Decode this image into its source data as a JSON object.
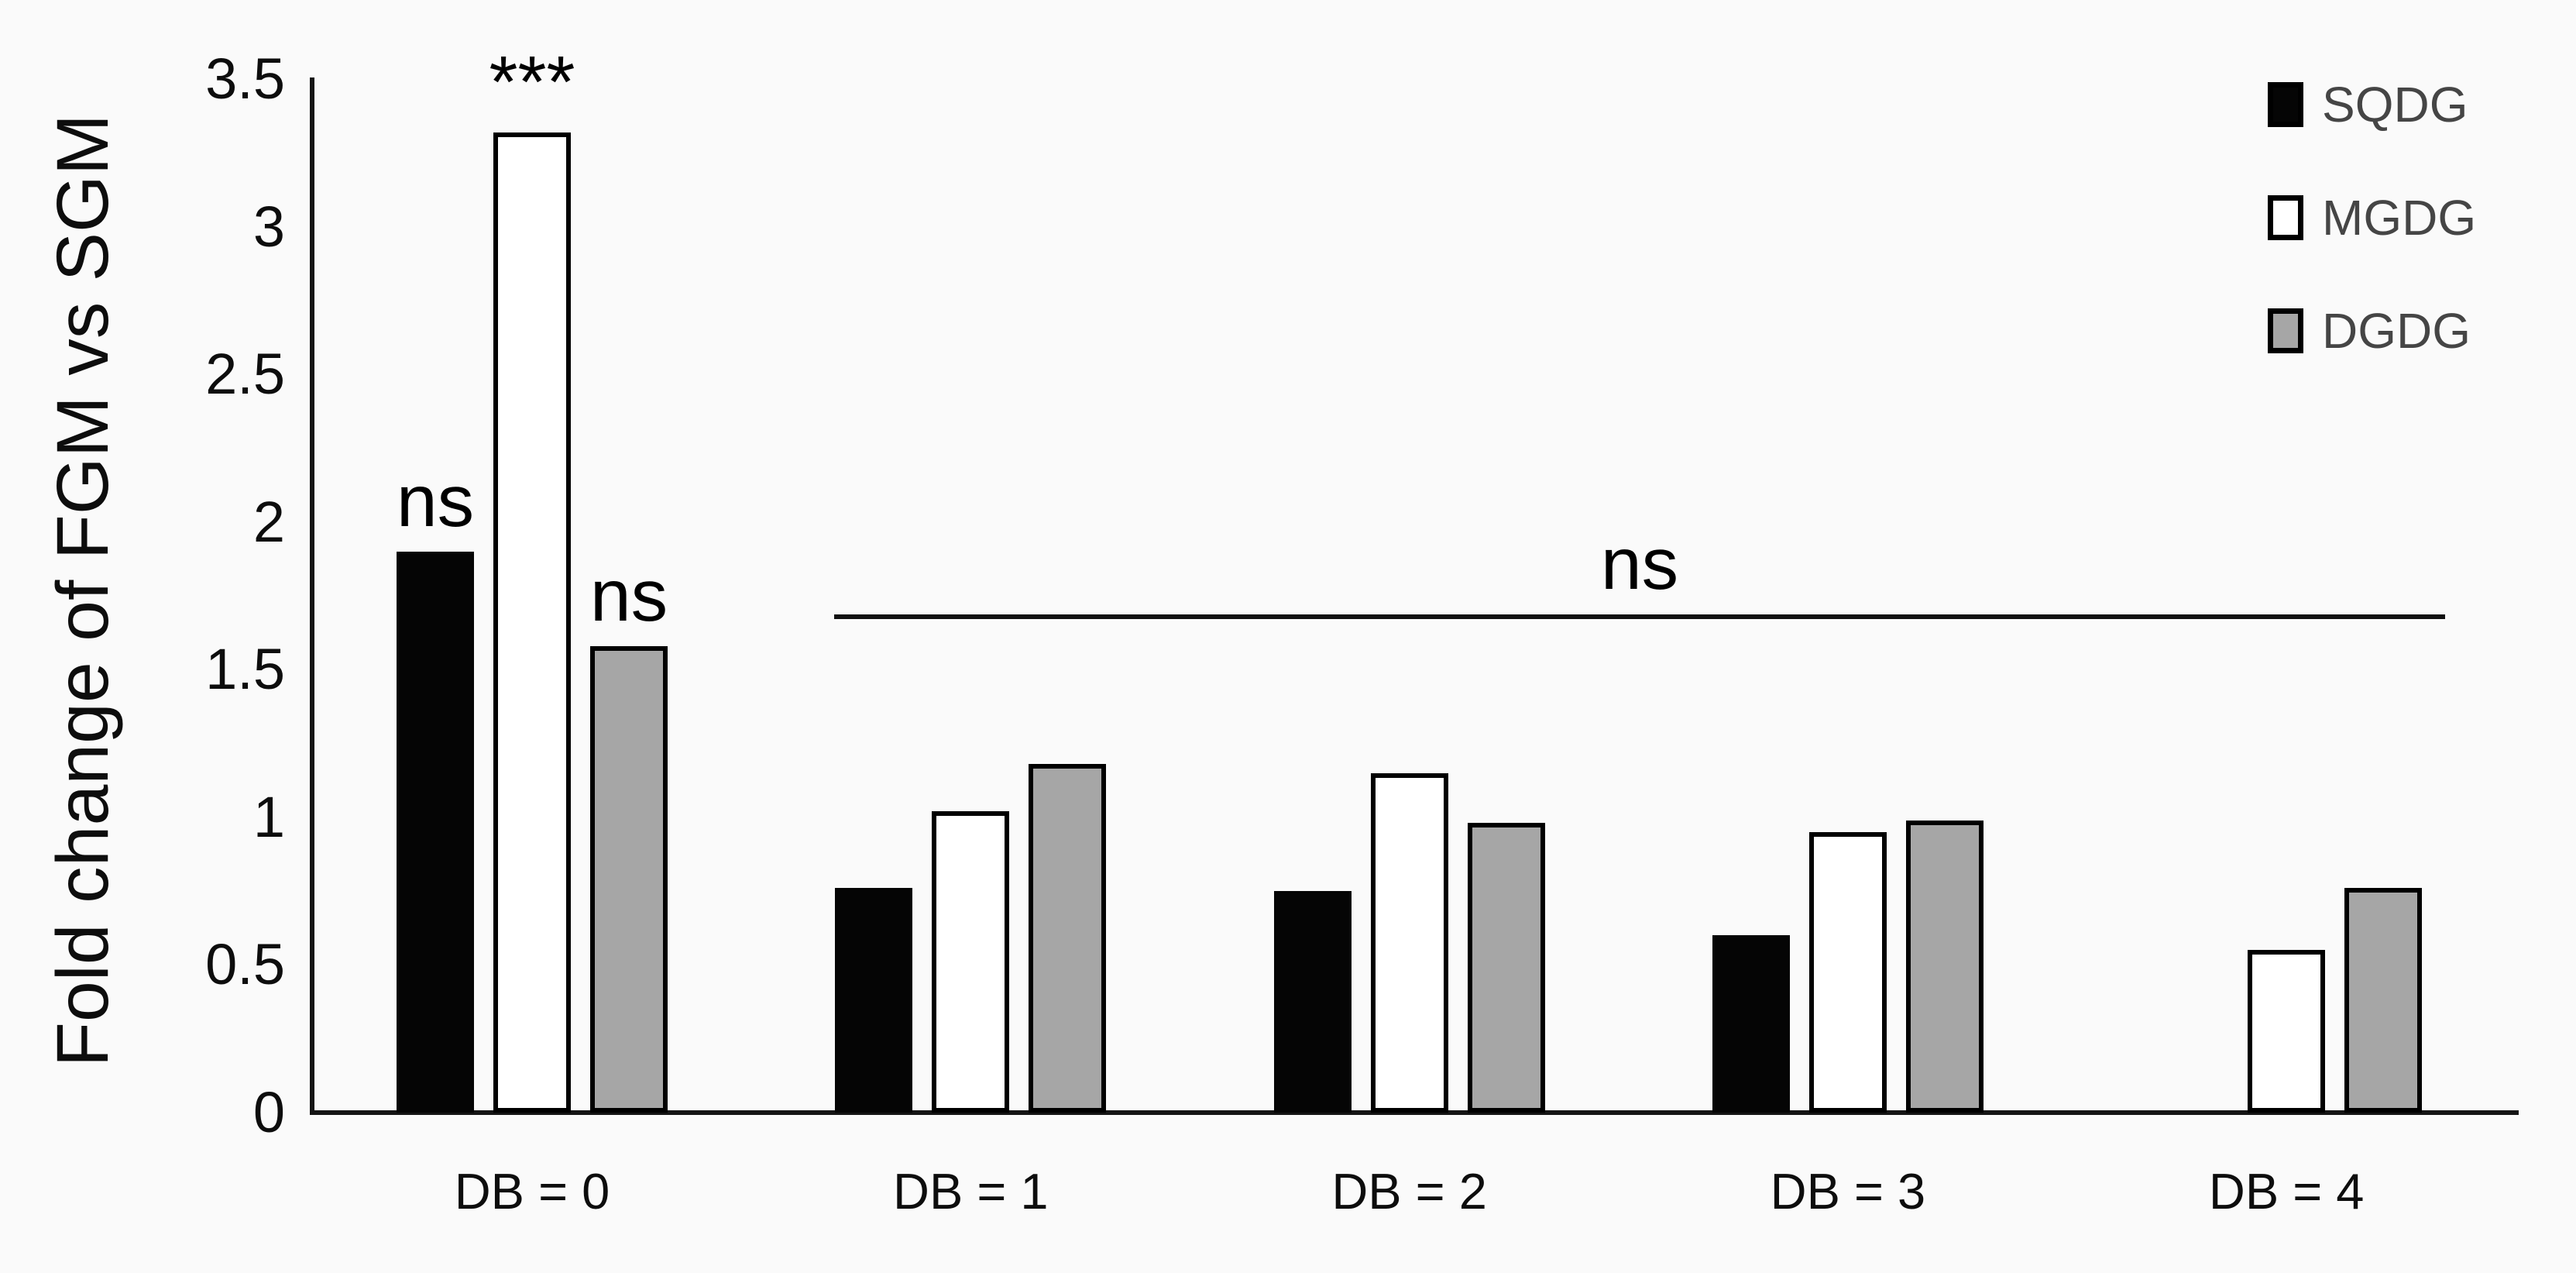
{
  "figure": {
    "background": "#fafafa",
    "y_axis_title": "Fold change of FGM vs SGM"
  },
  "legend": {
    "position": "top-right",
    "items": [
      {
        "label": "SQDG",
        "fill": "#050505",
        "border": "#000000"
      },
      {
        "label": "MGDG",
        "fill": "#ffffff",
        "border": "#000000"
      },
      {
        "label": "DGDG",
        "fill": "#a6a6a6",
        "border": "#000000"
      }
    ]
  },
  "chart_data": {
    "type": "bar",
    "title": "",
    "xlabel": "",
    "ylabel": "Fold change of FGM vs SGM",
    "categories": [
      "DB = 0",
      "DB = 1",
      "DB = 2",
      "DB = 3",
      "DB = 4"
    ],
    "series": [
      {
        "name": "SQDG",
        "color": "#050505",
        "values": [
          1.9,
          0.76,
          0.75,
          0.6,
          0
        ]
      },
      {
        "name": "MGDG",
        "color": "#ffffff",
        "values": [
          3.32,
          1.02,
          1.15,
          0.95,
          0.55
        ]
      },
      {
        "name": "DGDG",
        "color": "#a6a6a6",
        "values": [
          1.58,
          1.18,
          0.98,
          0.99,
          0.76
        ]
      }
    ],
    "ylim": [
      0,
      3.5
    ],
    "ytick_labels": [
      "0",
      "0.5",
      "1",
      "1.5",
      "2",
      "2.5",
      "3",
      "3.5"
    ],
    "grid": false,
    "legend_position": "top-right",
    "annotations": [
      {
        "text": "ns",
        "target": "SQDG at DB = 0"
      },
      {
        "text": "***",
        "target": "MGDG at DB = 0"
      },
      {
        "text": "ns",
        "target": "DGDG at DB = 0"
      },
      {
        "text": "ns",
        "target": "all bars DB = 1 through DB = 4 (horizontal bracket line)"
      }
    ]
  }
}
